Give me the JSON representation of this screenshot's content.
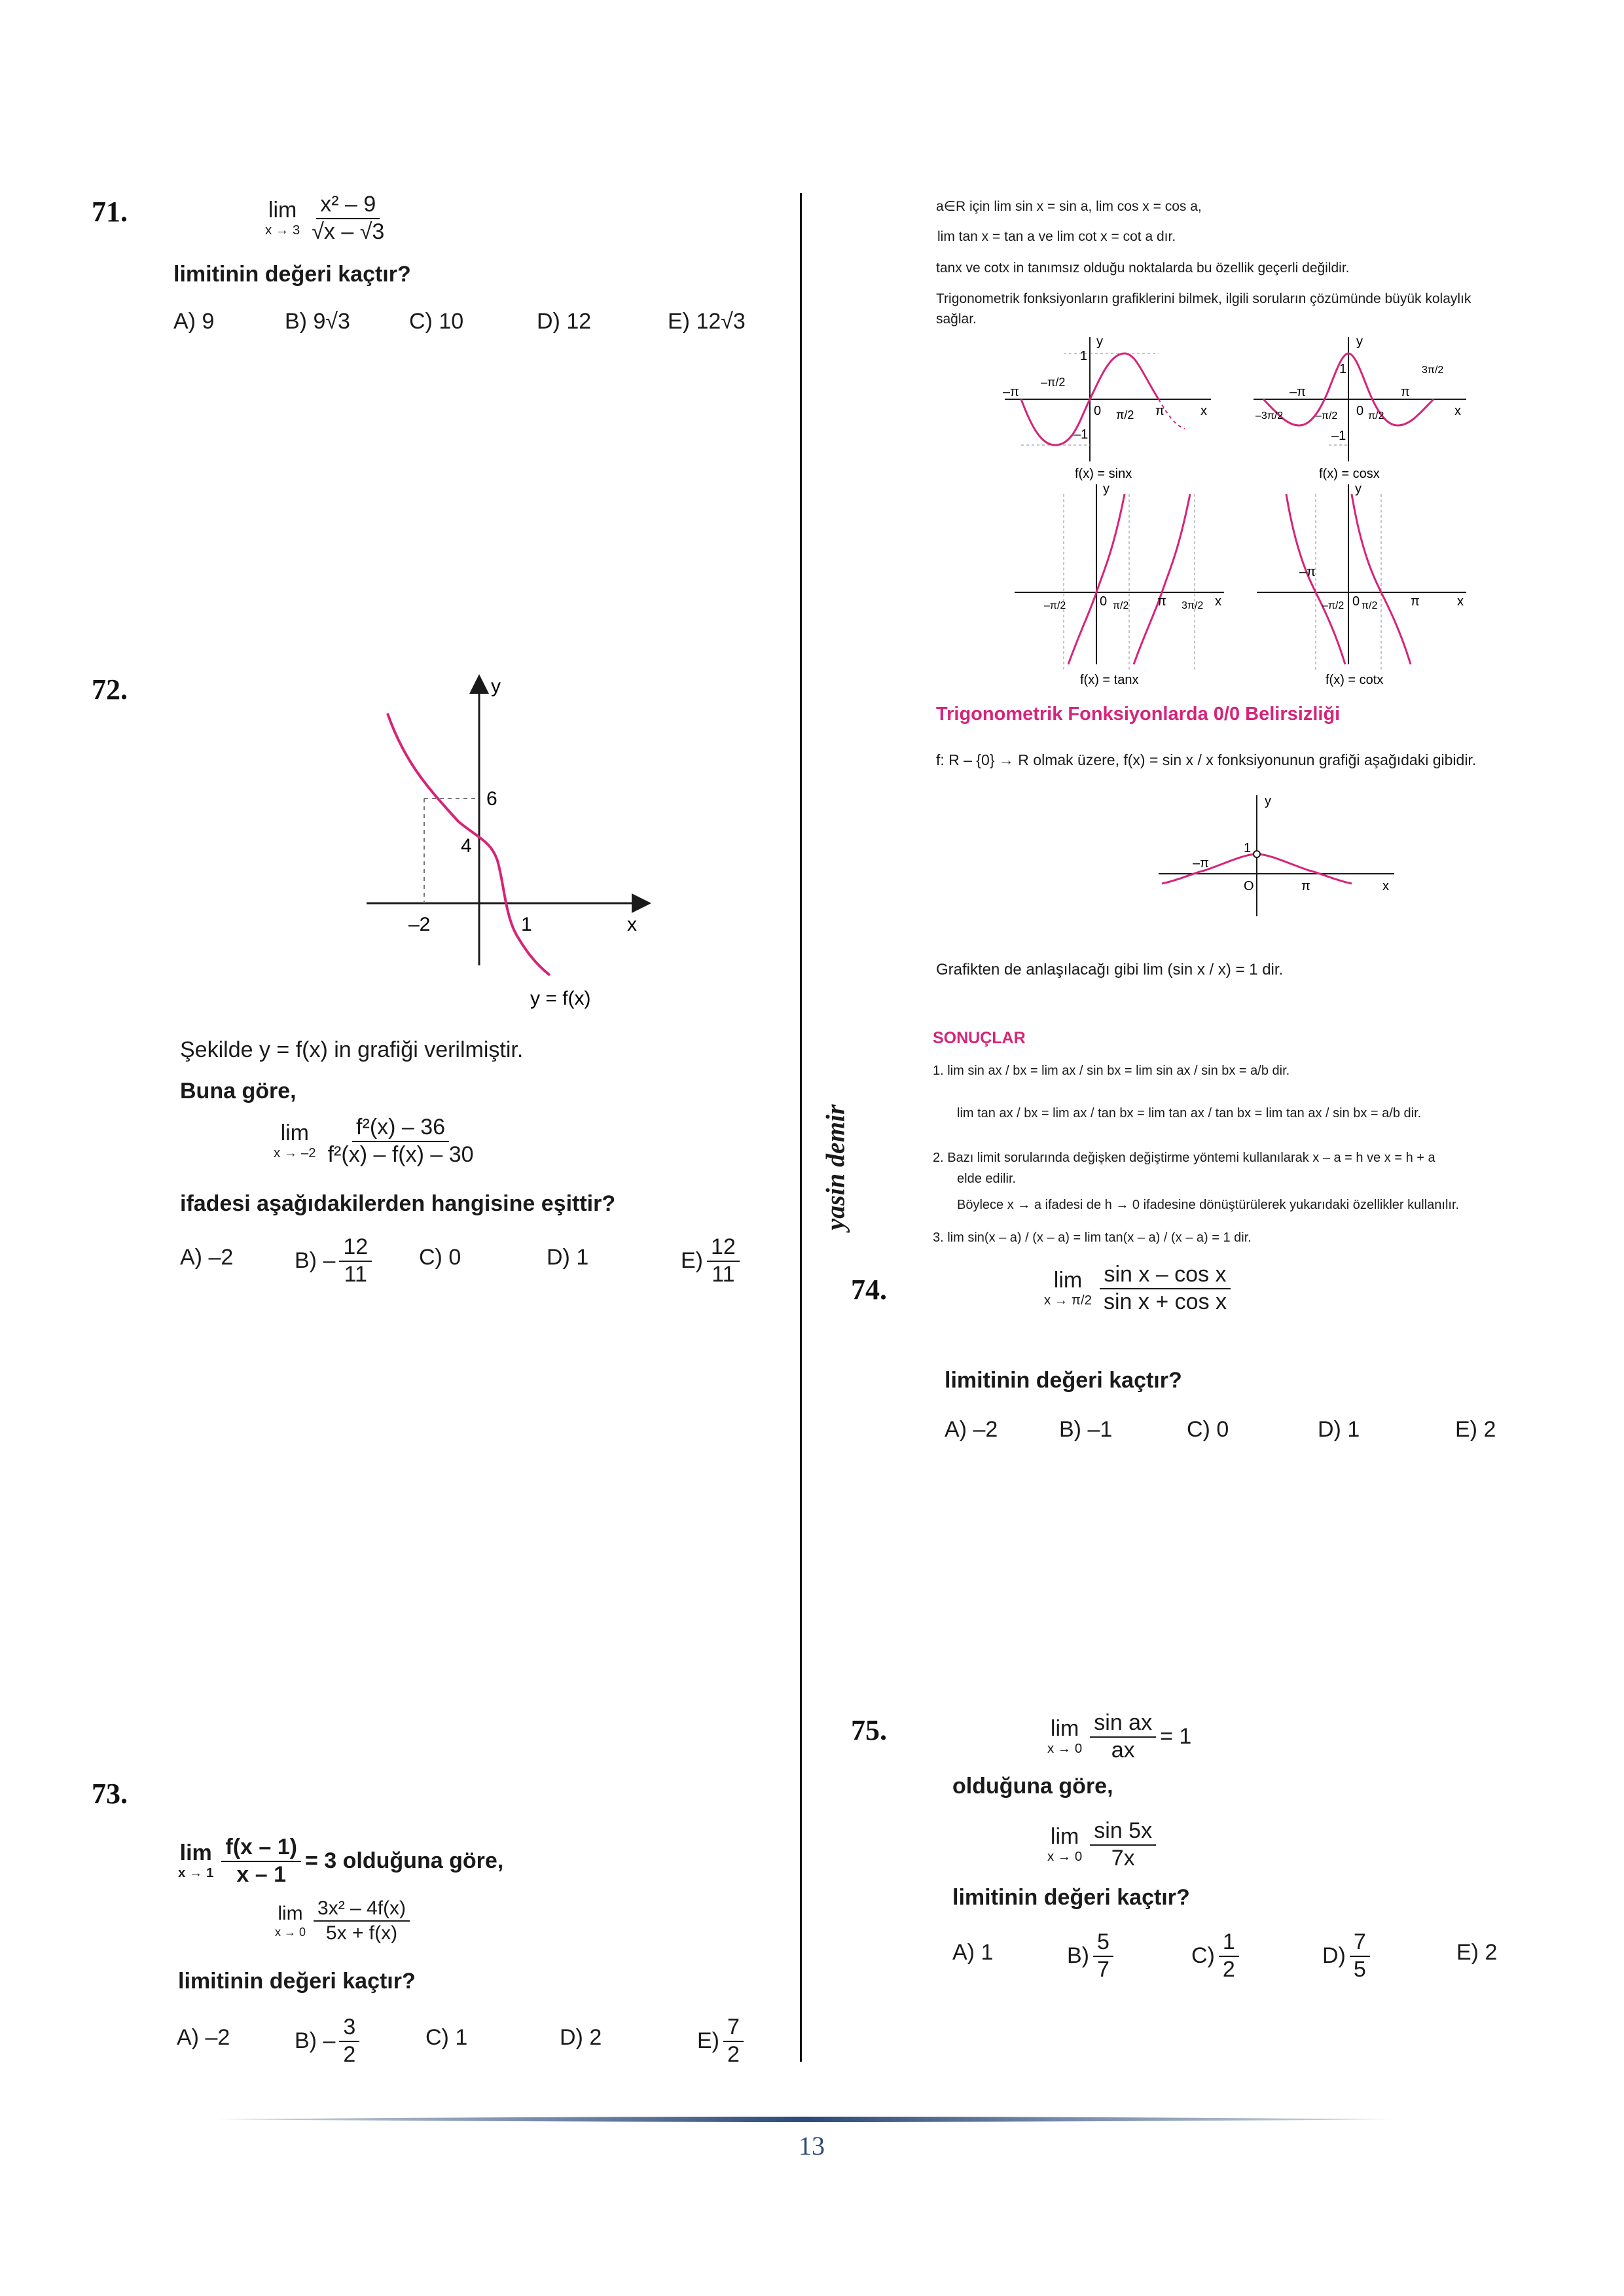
{
  "q71": {
    "number": "71.",
    "lim": "lim",
    "lim_sub": "x → 3",
    "num": "x² – 9",
    "den": "√x – √3",
    "question": "limitinin değeri kaçtır?",
    "choices": [
      "A) 9",
      "B) 9√3",
      "C) 10",
      "D) 12",
      "E) 12√3"
    ]
  },
  "q72": {
    "number": "72.",
    "graph": {
      "y_label": "y",
      "x_label": "x",
      "tick_6": "6",
      "tick_4": "4",
      "tick_m2": "–2",
      "tick_1": "1",
      "curve_label": "y = f(x)"
    },
    "intro": "Şekilde y = f(x) in grafiği verilmiştir.",
    "lead": "Buna göre,",
    "lim": "lim",
    "lim_sub": "x → –2",
    "num": "f²(x) – 36",
    "den": "f²(x) – f(x) – 30",
    "question": "ifadesi aşağıdakilerden hangisine eşittir?",
    "choices": [
      {
        "prefix": "A) –2"
      },
      {
        "prefix": "B) –",
        "num": "12",
        "den": "11"
      },
      {
        "prefix": "C) 0"
      },
      {
        "prefix": "D) 1"
      },
      {
        "prefix": "E)",
        "num": "12",
        "den": "11"
      }
    ]
  },
  "q73": {
    "number": "73.",
    "given_lim": "lim",
    "given_sub": "x → 1",
    "given_num": "f(x – 1)",
    "given_den": "x – 1",
    "given_tail": "= 3 olduğuna göre,",
    "lim": "lim",
    "lim_sub": "x → 0",
    "num": "3x² – 4f(x)",
    "den": "5x + f(x)",
    "question": "limitinin değeri kaçtır?",
    "choices": [
      {
        "prefix": "A) –2"
      },
      {
        "prefix": "B) –",
        "num": "3",
        "den": "2"
      },
      {
        "prefix": "C) 1"
      },
      {
        "prefix": "D) 2"
      },
      {
        "prefix": "E)",
        "num": "7",
        "den": "2"
      }
    ]
  },
  "info": {
    "line1": "a∈R için  lim sin x = sin a,  lim cos x = cos a,",
    "line2": "lim tan x = tan a  ve  lim cot x = cot a  dır.",
    "line3": "tanx ve cotx in tanımsız olduğu noktalarda bu özellik geçerli değildir.",
    "line4": "Trigonometrik fonksiyonların grafiklerini bilmek, ilgili soruların çözümünde büyük kolaylık",
    "line5": "sağlar.",
    "graphs": {
      "sin_caption": "f(x) = sinx",
      "cos_caption": "f(x) = cosx",
      "tan_caption": "f(x) = tanx",
      "cot_caption": "f(x) = cotx",
      "y": "y",
      "x": "x",
      "one": "1",
      "minus_one": "–1",
      "zero": "0",
      "pi": "π",
      "minus_pi": "–π",
      "pi_half": "π/2",
      "minus_pi_half": "–π/2",
      "three_pi_half": "3π/2",
      "minus_three_pi_half": "–3π/2"
    },
    "section_title": "Trigonometrik Fonksiyonlarda 0/0 Belirsizliği",
    "f_def": "f: R – {0} → R olmak üzere, f(x) = sin x / x fonksiyonunun grafiği aşağıdaki gibidir.",
    "sinc_y": "y",
    "sinc_x": "x",
    "sinc_one": "1",
    "sinc_zero": "O",
    "sinc_pi": "π",
    "sinc_mpi": "–π",
    "conclusion": "Grafikten de anlaşılacağı gibi  lim (sin x / x) = 1  dir.",
    "results_title": "SONUÇLAR",
    "r1a": "1.  lim sin ax / bx = lim ax / sin bx = lim sin ax / sin bx = a/b  dir.",
    "r1b": "lim tan ax / bx = lim ax / tan bx = lim tan ax / tan bx = lim tan ax / sin bx = a/b  dir.",
    "r2a": "2.  Bazı limit sorularında değişken değiştirme yöntemi kullanılarak x – a = h ve x = h + a",
    "r2b": "elde edilir.",
    "r2c": "Böylece x → a ifadesi de h → 0 ifadesine dönüştürülerek yukarıdaki özellikler kullanılır.",
    "r3": "3.  lim sin(x – a) / (x – a) = lim tan(x – a) / (x – a) = 1  dir."
  },
  "q74": {
    "number": "74.",
    "lim": "lim",
    "lim_sub": "x → π/2",
    "num": "sin x – cos x",
    "den": "sin x + cos x",
    "question": "limitinin değeri kaçtır?",
    "choices": [
      "A) –2",
      "B) –1",
      "C) 0",
      "D) 1",
      "E) 2"
    ]
  },
  "q75": {
    "number": "75.",
    "given_lim": "lim",
    "given_sub": "x → 0",
    "given_num": "sin ax",
    "given_den": "ax",
    "given_tail": "= 1",
    "lead": "olduğuna göre,",
    "lim": "lim",
    "lim_sub": "x → 0",
    "num": "sin 5x",
    "den": "7x",
    "question": "limitinin değeri kaçtır?",
    "choices": [
      {
        "prefix": "A) 1"
      },
      {
        "prefix": "B)",
        "num": "5",
        "den": "7"
      },
      {
        "prefix": "C)",
        "num": "1",
        "den": "2"
      },
      {
        "prefix": "D)",
        "num": "7",
        "den": "5"
      },
      {
        "prefix": "E) 2"
      }
    ]
  },
  "watermark": "yasin demir",
  "page_number": "13",
  "colors": {
    "accent": "#d6247a",
    "text": "#1a1a1a",
    "footer": "#2b4a7a"
  }
}
